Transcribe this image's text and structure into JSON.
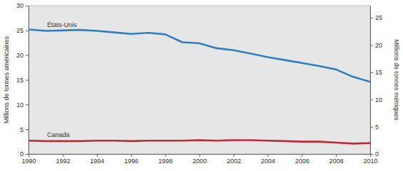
{
  "chart_data": {
    "type": "line",
    "y_label": "Millions de tonnes américaines",
    "y2_label": "Millions de tonnes métriques",
    "x": [
      1990,
      1991,
      1992,
      1993,
      1994,
      1995,
      1996,
      1997,
      1998,
      1999,
      2000,
      2001,
      2002,
      2003,
      2004,
      2005,
      2006,
      2007,
      2008,
      2009,
      2010
    ],
    "series": [
      {
        "name": "États-Unis",
        "color": "#2f7fc1",
        "values": [
          25.2,
          24.9,
          25.0,
          25.1,
          24.9,
          24.6,
          24.3,
          24.5,
          24.2,
          22.6,
          22.4,
          21.4,
          21.0,
          20.3,
          19.6,
          19.0,
          18.4,
          17.8,
          17.1,
          15.6,
          14.6
        ]
      },
      {
        "name": "Canada",
        "color": "#be2a3c",
        "values": [
          2.7,
          2.6,
          2.6,
          2.6,
          2.7,
          2.7,
          2.6,
          2.7,
          2.7,
          2.7,
          2.8,
          2.7,
          2.8,
          2.8,
          2.7,
          2.6,
          2.5,
          2.5,
          2.3,
          2.1,
          2.2
        ]
      }
    ],
    "xlim": [
      1990,
      2010
    ],
    "xticks": [
      1990,
      1992,
      1994,
      1996,
      1998,
      2000,
      2002,
      2004,
      2006,
      2008,
      2010
    ],
    "ylim": [
      0,
      30
    ],
    "yticks": [
      0,
      5,
      10,
      15,
      20,
      25,
      30
    ],
    "y2lim": [
      0,
      27.216
    ],
    "y2ticks": [
      0,
      5,
      10,
      15,
      20,
      25
    ],
    "grid": false
  }
}
